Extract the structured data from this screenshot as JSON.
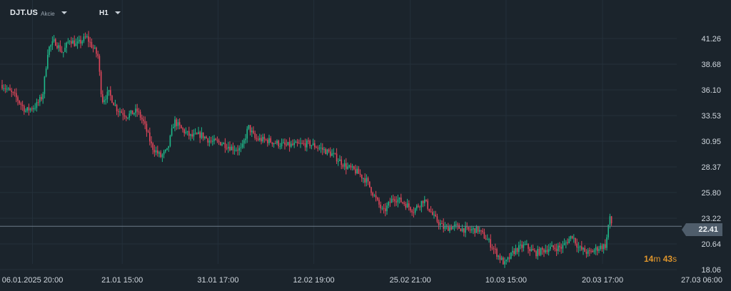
{
  "header": {
    "symbol": "DJT.US",
    "symbol_type": "Akcie",
    "timeframe": "H1"
  },
  "current_price": {
    "label": "22.41",
    "value": 22.41
  },
  "countdown": {
    "minutes": "14",
    "minutes_unit": "m",
    "seconds": "43",
    "seconds_unit": "s"
  },
  "colors": {
    "background": "#1b242c",
    "grid": "#24303a",
    "up": "#1fb88a",
    "down": "#e0465a",
    "axis_text": "#d0d7de",
    "price_line": "#6d7b88",
    "countdown": "#e0962c"
  },
  "chart_data": {
    "type": "candlestick",
    "ylim": [
      18.06,
      43.2
    ],
    "y_ticks": [
      "41.26",
      "38.68",
      "36.10",
      "33.53",
      "30.95",
      "28.37",
      "25.80",
      "23.22",
      "20.64",
      "18.06"
    ],
    "y_tick_values": [
      41.26,
      38.68,
      36.1,
      33.53,
      30.95,
      28.37,
      25.8,
      23.22,
      20.64,
      18.06
    ],
    "x_ticks": [
      {
        "date": "06.01.2025",
        "time": "20:00",
        "pos": 0.045
      },
      {
        "date": "21.01",
        "time": "15:00",
        "pos": 0.178
      },
      {
        "date": "31.01",
        "time": "17:00",
        "pos": 0.32
      },
      {
        "date": "12.02",
        "time": "19:00",
        "pos": 0.462
      },
      {
        "date": "25.02",
        "time": "21:00",
        "pos": 0.605
      },
      {
        "date": "10.03",
        "time": "15:00",
        "pos": 0.747
      },
      {
        "date": "20.03",
        "time": "17:00",
        "pos": 0.89
      },
      {
        "date": "27.03",
        "time": "06:00",
        "pos": 1.0
      }
    ],
    "path": [
      [
        0.0,
        36.6
      ],
      [
        0.02,
        35.4
      ],
      [
        0.035,
        34.0
      ],
      [
        0.05,
        34.5
      ],
      [
        0.06,
        35.5
      ],
      [
        0.068,
        40.2
      ],
      [
        0.078,
        41.0
      ],
      [
        0.09,
        39.8
      ],
      [
        0.1,
        41.2
      ],
      [
        0.11,
        40.6
      ],
      [
        0.125,
        41.4
      ],
      [
        0.135,
        40.3
      ],
      [
        0.142,
        39.5
      ],
      [
        0.148,
        35.0
      ],
      [
        0.158,
        35.8
      ],
      [
        0.17,
        34.2
      ],
      [
        0.185,
        33.5
      ],
      [
        0.2,
        34.0
      ],
      [
        0.21,
        32.8
      ],
      [
        0.222,
        30.4
      ],
      [
        0.235,
        29.4
      ],
      [
        0.245,
        30.0
      ],
      [
        0.255,
        33.0
      ],
      [
        0.265,
        32.2
      ],
      [
        0.28,
        31.4
      ],
      [
        0.295,
        31.6
      ],
      [
        0.31,
        30.9
      ],
      [
        0.325,
        30.8
      ],
      [
        0.34,
        30.3
      ],
      [
        0.355,
        30.1
      ],
      [
        0.365,
        32.4
      ],
      [
        0.375,
        31.2
      ],
      [
        0.395,
        31.0
      ],
      [
        0.42,
        30.5
      ],
      [
        0.44,
        30.6
      ],
      [
        0.455,
        30.7
      ],
      [
        0.47,
        30.3
      ],
      [
        0.49,
        29.6
      ],
      [
        0.51,
        28.4
      ],
      [
        0.525,
        27.9
      ],
      [
        0.54,
        27.0
      ],
      [
        0.555,
        25.0
      ],
      [
        0.565,
        23.8
      ],
      [
        0.58,
        25.3
      ],
      [
        0.595,
        24.8
      ],
      [
        0.61,
        24.0
      ],
      [
        0.625,
        25.1
      ],
      [
        0.64,
        23.3
      ],
      [
        0.655,
        22.2
      ],
      [
        0.67,
        22.4
      ],
      [
        0.69,
        22.0
      ],
      [
        0.705,
        22.1
      ],
      [
        0.72,
        21.0
      ],
      [
        0.735,
        19.5
      ],
      [
        0.745,
        18.6
      ],
      [
        0.76,
        20.0
      ],
      [
        0.775,
        20.5
      ],
      [
        0.79,
        19.7
      ],
      [
        0.81,
        20.2
      ],
      [
        0.83,
        20.3
      ],
      [
        0.845,
        21.5
      ],
      [
        0.855,
        20.2
      ],
      [
        0.87,
        19.7
      ],
      [
        0.885,
        20.3
      ],
      [
        0.895,
        20.5
      ],
      [
        0.9,
        23.3
      ],
      [
        0.905,
        22.4
      ]
    ]
  }
}
